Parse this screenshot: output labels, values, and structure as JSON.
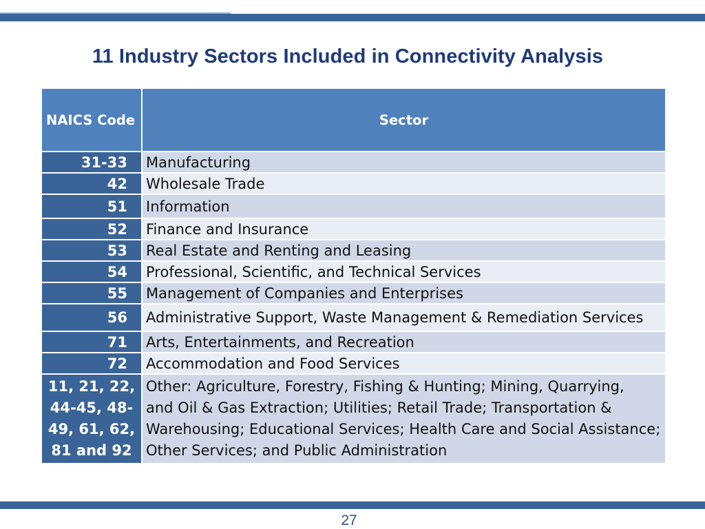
{
  "title": "11 Industry Sectors Included in Connectivity Analysis",
  "table": {
    "headers": {
      "code": "NAICS Code",
      "sector": "Sector"
    },
    "rows": [
      {
        "code": "31-33",
        "sector": "Manufacturing"
      },
      {
        "code": "42",
        "sector": "Wholesale Trade"
      },
      {
        "code": "51",
        "sector": "Information"
      },
      {
        "code": "52",
        "sector": "Finance and Insurance"
      },
      {
        "code": "53",
        "sector": "Real Estate and Renting and Leasing"
      },
      {
        "code": "54",
        "sector": "Professional, Scientific, and Technical Services"
      },
      {
        "code": "55",
        "sector": "Management of Companies and Enterprises"
      },
      {
        "code": "56",
        "sector": "Administrative Support, Waste Management & Remediation Services"
      },
      {
        "code": "71",
        "sector": "Arts, Entertainments, and Recreation"
      },
      {
        "code": "72",
        "sector": "Accommodation and Food Services"
      }
    ],
    "other": {
      "code_lines": [
        "11, 21,  22,",
        "44-45, 48-",
        "49, 61, 62,",
        "81 and 92"
      ],
      "sector_lines": [
        "Other: Agriculture, Forestry, Fishing & Hunting; Mining, Quarrying,",
        "and Oil & Gas Extraction; Utilities;  Retail Trade; Transportation &",
        "Warehousing; Educational Services; Health Care and Social Assistance;",
        "Other Services; and Public Administration"
      ]
    }
  },
  "page_number": "27",
  "colors": {
    "bar": "#3a6497",
    "header": "#4f81bd",
    "row_odd": "#d0d8e8",
    "row_even": "#e9edf4",
    "title": "#1f3a7a"
  }
}
